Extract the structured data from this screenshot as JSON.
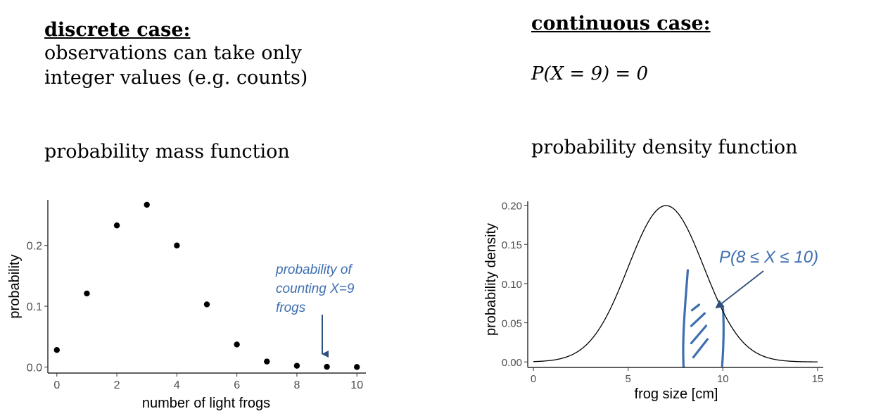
{
  "left": {
    "heading": "discrete case:",
    "line1": "observations can take only",
    "line2": "integer values (e.g. counts)",
    "function_label": "probability mass function"
  },
  "right": {
    "heading": "continuous case:",
    "equation": "P(X = 9) = 0",
    "function_label": "probability density function"
  },
  "chart_data": [
    {
      "type": "scatter",
      "title": "",
      "xlabel": "number of light frogs",
      "ylabel": "probability",
      "x": [
        0,
        1,
        2,
        3,
        4,
        5,
        6,
        7,
        8,
        9,
        10
      ],
      "y": [
        0.028,
        0.121,
        0.233,
        0.267,
        0.2,
        0.103,
        0.037,
        0.009,
        0.002,
        0.0003,
        2e-05
      ],
      "xlim": [
        -0.3,
        10.3
      ],
      "ylim": [
        -0.01,
        0.275
      ],
      "xticks": [
        0,
        2,
        4,
        6,
        8,
        10
      ],
      "yticks": [
        0.0,
        0.1,
        0.2
      ],
      "ytick_labels": [
        "0.0",
        "0.1",
        "0.2"
      ],
      "annotation": {
        "lines": [
          "probability of",
          "counting X=9",
          "frogs"
        ],
        "points_to_x": 9,
        "color": "#3E6EAF"
      },
      "grid": false
    },
    {
      "type": "line",
      "title": "",
      "xlabel": "frog size [cm]",
      "ylabel": "probability density",
      "distribution": {
        "mean": 7,
        "sd": 2
      },
      "xlim": [
        -0.3,
        15.3
      ],
      "ylim": [
        -0.007,
        0.205
      ],
      "xticks": [
        0,
        5,
        10,
        15
      ],
      "yticks": [
        0.0,
        0.05,
        0.1,
        0.15,
        0.2
      ],
      "ytick_labels": [
        "0.00",
        "0.05",
        "0.10",
        "0.15",
        "0.20"
      ],
      "shaded_interval": [
        8,
        10
      ],
      "annotation": {
        "text": "P(8 ≤ X ≤ 10)",
        "color": "#3E6EAF"
      },
      "grid": false
    }
  ]
}
